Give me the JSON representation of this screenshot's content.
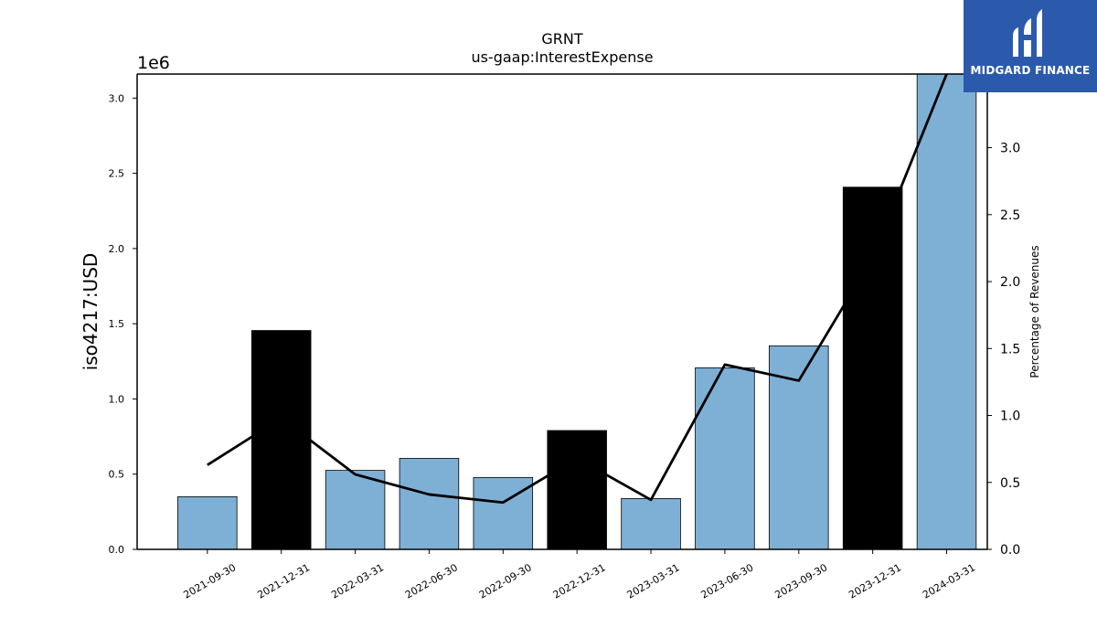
{
  "chart_data": {
    "type": "bar",
    "title": "GRNT",
    "subtitle": "us-gaap:InterestExpense",
    "ylabel": "iso4217:USD",
    "y_scale_label": "1e6",
    "y2label": "Percentage of Revenues",
    "categories": [
      "2021-09-30",
      "2021-12-31",
      "2022-03-31",
      "2022-06-30",
      "2022-09-30",
      "2022-12-31",
      "2023-03-31",
      "2023-06-30",
      "2023-09-30",
      "2023-12-31",
      "2024-03-31"
    ],
    "values": [
      350000,
      1455000,
      525000,
      605000,
      478000,
      790000,
      338000,
      1207000,
      1353000,
      2408000,
      3200000
    ],
    "bar_colors": [
      "#7eb0d5",
      "#000000",
      "#7eb0d5",
      "#7eb0d5",
      "#7eb0d5",
      "#000000",
      "#7eb0d5",
      "#7eb0d5",
      "#7eb0d5",
      "#000000",
      "#7eb0d5"
    ],
    "line_values": [
      0.63,
      0.98,
      0.56,
      0.41,
      0.35,
      0.68,
      0.37,
      1.38,
      1.26,
      2.18,
      3.55
    ],
    "line_color": "#000000",
    "ylim": [
      0,
      3160000
    ],
    "y2lim": [
      0,
      3.55
    ],
    "yticks": [
      0,
      500000,
      1000000,
      1500000,
      2000000,
      2500000,
      3000000
    ],
    "ytick_labels": [
      "0.0",
      "0.5",
      "1.0",
      "1.5",
      "2.0",
      "2.5",
      "3.0"
    ],
    "y2ticks": [
      0,
      0.5,
      1.0,
      1.5,
      2.0,
      2.5,
      3.0
    ],
    "y2tick_labels": [
      "0.0",
      "0.5",
      "1.0",
      "1.5",
      "2.0",
      "2.5",
      "3.0"
    ],
    "grid": false
  },
  "brand": {
    "name": "MIDGARD FINANCE",
    "color": "#2b5aad"
  }
}
